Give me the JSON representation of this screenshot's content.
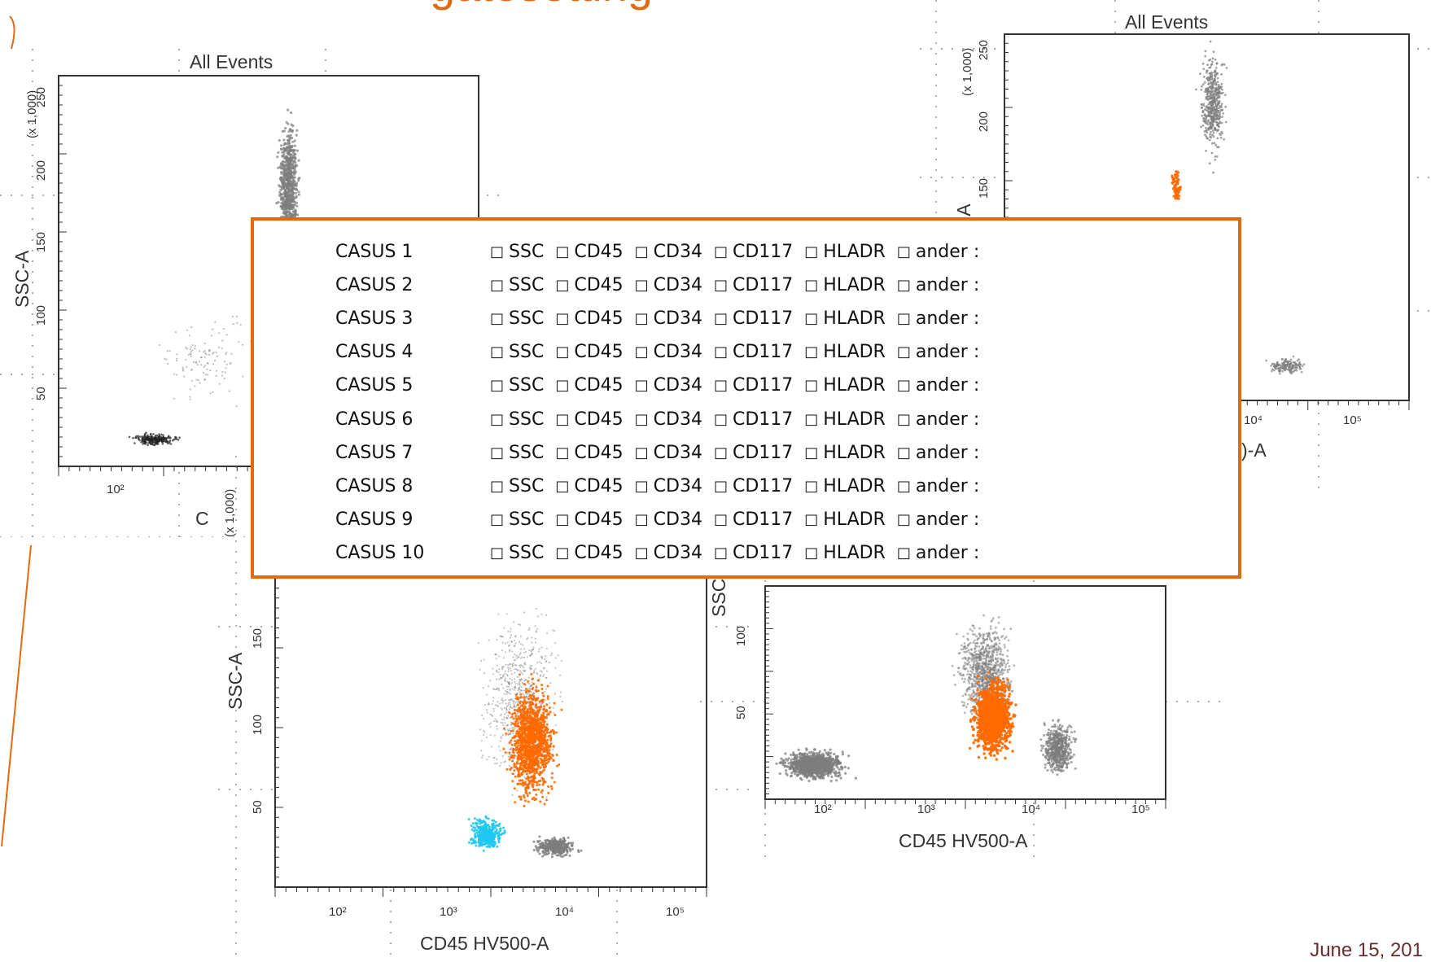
{
  "slide": {
    "title": "gatesetting",
    "footer_date": "June 15, 201"
  },
  "colors": {
    "accent": "#e06b12",
    "events_gray": "#7d7d7d",
    "gated_orange": "#ff6a00",
    "gated_cyan": "#1ec8ef"
  },
  "plots": [
    {
      "title": "All Events",
      "y_axis_label": "SSC-A",
      "y_scale_note": "(x 1,000)",
      "y_ticks": [
        "50",
        "100",
        "150",
        "200",
        "250"
      ],
      "x_ticks": [
        "10²"
      ],
      "x_axis_label": "C"
    },
    {
      "title": "All Events",
      "y_axis_label": "C-A",
      "y_scale_note": "(x 1,000)",
      "y_ticks": [
        "150",
        "200",
        "250"
      ],
      "x_ticks": [
        "10⁴",
        "10⁵"
      ],
      "x_axis_label": ")-A"
    },
    {
      "title": "",
      "y_axis_label": "SSC-A",
      "y_scale_note": "(x 1,000)",
      "y_ticks": [
        "50",
        "100",
        "150"
      ],
      "x_ticks": [
        "10²",
        "10³",
        "10⁴",
        "10⁵"
      ],
      "x_axis_label": "CD45 HV500-A"
    },
    {
      "title": "",
      "y_axis_label": "SSC",
      "y_scale_note": "",
      "y_ticks": [
        "50",
        "100"
      ],
      "x_ticks": [
        "10²",
        "10³",
        "10⁴",
        "10⁵"
      ],
      "x_axis_label": "CD45 HV500-A"
    }
  ],
  "checklist": {
    "box_glyph": "□",
    "options": [
      "SSC",
      "CD45",
      "CD34",
      "CD117",
      "HLADR",
      "ander :"
    ],
    "cases": [
      "CASUS 1",
      "CASUS 2",
      "CASUS 3",
      "CASUS 4",
      "CASUS 5",
      "CASUS 6",
      "CASUS 7",
      "CASUS 8",
      "CASUS 9",
      "CASUS 10"
    ]
  }
}
